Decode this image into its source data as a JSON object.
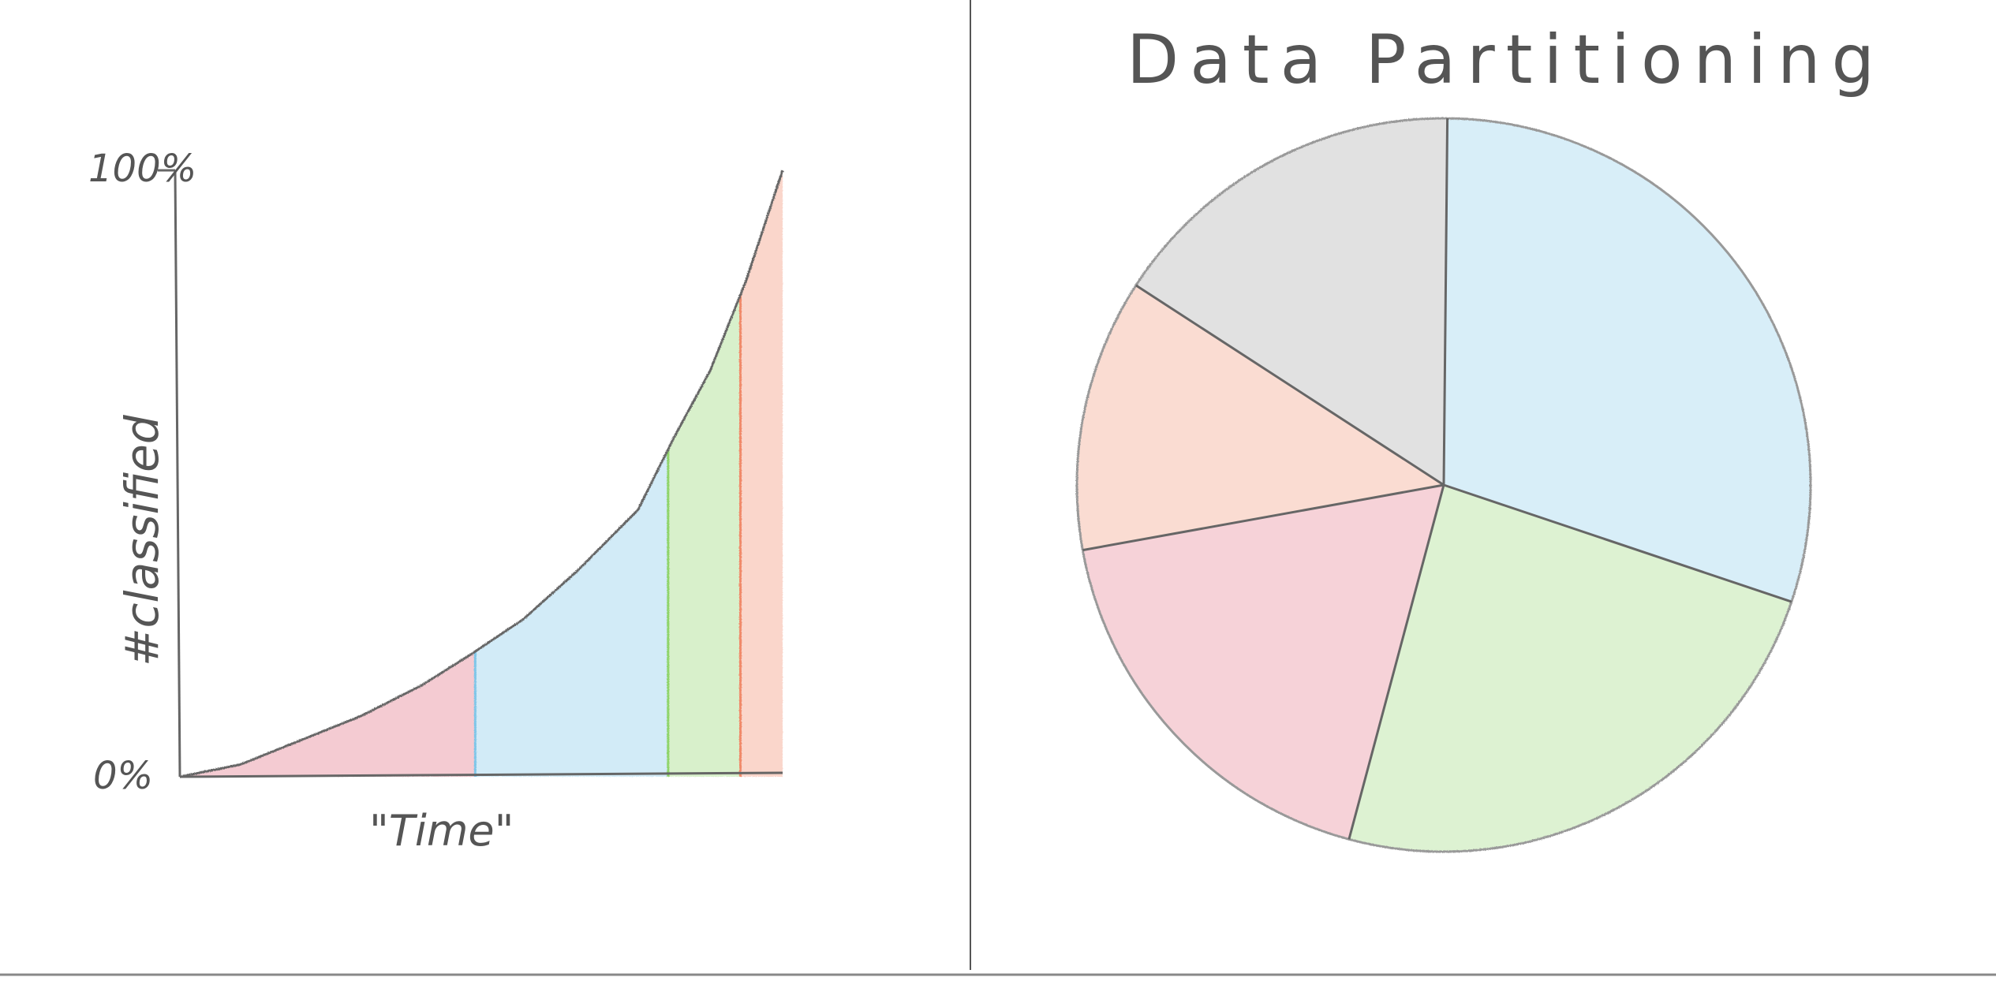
{
  "chart_data": [
    {
      "type": "area",
      "title": "",
      "xlabel": "\"Time\"",
      "ylabel": "#classified",
      "ytick_labels": [
        "0%",
        "100%"
      ],
      "ylim": [
        0,
        100
      ],
      "xlim": [
        0,
        100
      ],
      "grid": false,
      "curve": {
        "x": [
          0,
          10,
          20,
          30,
          40,
          48,
          57,
          66,
          76,
          82,
          88,
          94,
          100
        ],
        "y": [
          0,
          2,
          6,
          10,
          15,
          20,
          26,
          34,
          44,
          56,
          67,
          82,
          100
        ]
      },
      "segments": [
        {
          "color": "#e06b7d",
          "x_start": 0,
          "x_end": 49
        },
        {
          "color": "#7fc6e8",
          "x_start": 49,
          "x_end": 81
        },
        {
          "color": "#8fd46a",
          "x_start": 81,
          "x_end": 93
        },
        {
          "color": "#f08a6a",
          "x_start": 93,
          "x_end": 100
        }
      ]
    },
    {
      "type": "pie",
      "title": "Data Partitioning",
      "slices": [
        {
          "color": "#7fc6e8",
          "value": 30
        },
        {
          "color": "#8fd46a",
          "value": 24
        },
        {
          "color": "#e06b7d",
          "value": 18
        },
        {
          "color": "#f08a6a",
          "value": 12
        },
        {
          "color": "#9a9a9a",
          "value": 16
        }
      ],
      "legend": "none"
    }
  ]
}
